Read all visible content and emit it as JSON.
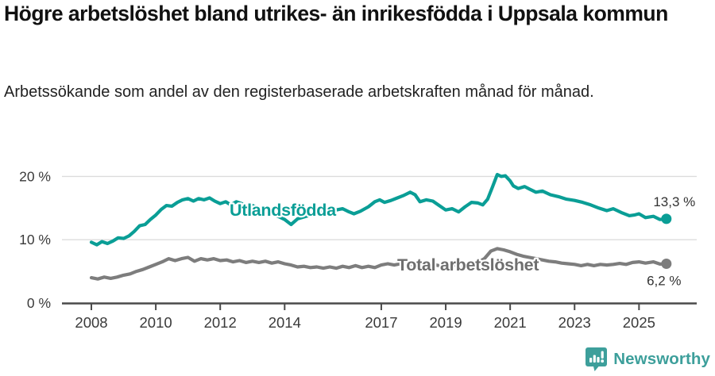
{
  "header": {
    "title": "Högre arbetslöshet bland utrikes- än inrikesfödda i Uppsala kommun",
    "subtitle": "Arbetssökande som andel av den registerbaserade arbetskraften månad för månad."
  },
  "chart_data": {
    "type": "line",
    "title": "Arbetssökande som andel av den registerbaserade arbetskraften månad för månad",
    "xlabel": "",
    "ylabel": "",
    "unit": "%",
    "grid": "horizontal",
    "legend_position": "inline-labels",
    "xlim": [
      2007.55,
      2026.35
    ],
    "ylim": [
      0,
      21.8
    ],
    "x_ticks": [
      {
        "value": 2008,
        "label": "2008"
      },
      {
        "value": 2010,
        "label": "2010"
      },
      {
        "value": 2012,
        "label": "2012"
      },
      {
        "value": 2014,
        "label": "2014"
      },
      {
        "value": 2017,
        "label": "2017"
      },
      {
        "value": 2019,
        "label": "2019"
      },
      {
        "value": 2021,
        "label": "2021"
      },
      {
        "value": 2023,
        "label": "2023"
      },
      {
        "value": 2025,
        "label": "2025"
      }
    ],
    "y_ticks": [
      {
        "value": 0,
        "label": "0 %"
      },
      {
        "value": 10,
        "label": "10 %"
      },
      {
        "value": 20,
        "label": "20 %"
      }
    ],
    "series": [
      {
        "name": "Total arbetslöshet",
        "color": "#7d7d7d",
        "label_color": "#6e6e6e",
        "end_label": "6,2 %",
        "end_value": 6.2,
        "points": [
          [
            2008.0,
            4.0
          ],
          [
            2008.2,
            3.8
          ],
          [
            2008.4,
            4.1
          ],
          [
            2008.6,
            3.9
          ],
          [
            2008.8,
            4.1
          ],
          [
            2009.0,
            4.4
          ],
          [
            2009.2,
            4.6
          ],
          [
            2009.4,
            5.0
          ],
          [
            2009.6,
            5.3
          ],
          [
            2009.8,
            5.7
          ],
          [
            2010.0,
            6.1
          ],
          [
            2010.2,
            6.5
          ],
          [
            2010.4,
            7.0
          ],
          [
            2010.6,
            6.7
          ],
          [
            2010.8,
            7.0
          ],
          [
            2011.0,
            7.2
          ],
          [
            2011.2,
            6.6
          ],
          [
            2011.4,
            7.0
          ],
          [
            2011.6,
            6.8
          ],
          [
            2011.8,
            7.0
          ],
          [
            2012.0,
            6.7
          ],
          [
            2012.2,
            6.8
          ],
          [
            2012.4,
            6.5
          ],
          [
            2012.6,
            6.7
          ],
          [
            2012.8,
            6.4
          ],
          [
            2013.0,
            6.6
          ],
          [
            2013.2,
            6.4
          ],
          [
            2013.4,
            6.6
          ],
          [
            2013.6,
            6.3
          ],
          [
            2013.8,
            6.5
          ],
          [
            2014.0,
            6.2
          ],
          [
            2014.2,
            6.0
          ],
          [
            2014.4,
            5.7
          ],
          [
            2014.6,
            5.8
          ],
          [
            2014.8,
            5.6
          ],
          [
            2015.0,
            5.7
          ],
          [
            2015.2,
            5.5
          ],
          [
            2015.4,
            5.7
          ],
          [
            2015.6,
            5.5
          ],
          [
            2015.8,
            5.8
          ],
          [
            2016.0,
            5.6
          ],
          [
            2016.2,
            5.9
          ],
          [
            2016.4,
            5.6
          ],
          [
            2016.6,
            5.8
          ],
          [
            2016.8,
            5.6
          ],
          [
            2017.0,
            6.0
          ],
          [
            2017.2,
            6.2
          ],
          [
            2017.4,
            6.0
          ],
          [
            2017.6,
            6.2
          ],
          [
            2017.8,
            6.0
          ],
          [
            2018.0,
            6.1
          ],
          [
            2018.2,
            6.3
          ],
          [
            2018.4,
            6.0
          ],
          [
            2018.6,
            6.1
          ],
          [
            2018.8,
            5.9
          ],
          [
            2019.0,
            5.9
          ],
          [
            2019.2,
            6.1
          ],
          [
            2019.4,
            5.9
          ],
          [
            2019.6,
            6.1
          ],
          [
            2019.8,
            6.2
          ],
          [
            2020.0,
            6.4
          ],
          [
            2020.2,
            7.0
          ],
          [
            2020.4,
            8.2
          ],
          [
            2020.6,
            8.6
          ],
          [
            2020.8,
            8.4
          ],
          [
            2021.0,
            8.1
          ],
          [
            2021.2,
            7.7
          ],
          [
            2021.4,
            7.4
          ],
          [
            2021.6,
            7.2
          ],
          [
            2021.8,
            7.0
          ],
          [
            2022.0,
            6.8
          ],
          [
            2022.2,
            6.6
          ],
          [
            2022.4,
            6.5
          ],
          [
            2022.6,
            6.3
          ],
          [
            2022.8,
            6.2
          ],
          [
            2023.0,
            6.1
          ],
          [
            2023.2,
            5.9
          ],
          [
            2023.4,
            6.1
          ],
          [
            2023.6,
            5.9
          ],
          [
            2023.8,
            6.1
          ],
          [
            2024.0,
            6.0
          ],
          [
            2024.2,
            6.1
          ],
          [
            2024.4,
            6.25
          ],
          [
            2024.6,
            6.1
          ],
          [
            2024.8,
            6.4
          ],
          [
            2025.0,
            6.5
          ],
          [
            2025.2,
            6.3
          ],
          [
            2025.45,
            6.5
          ],
          [
            2025.65,
            6.15
          ],
          [
            2025.85,
            6.2
          ]
        ]
      },
      {
        "name": "Utlandsfödda",
        "color": "#0a9e96",
        "label_color": "#0a9e96",
        "end_label": "13,3 %",
        "end_value": 13.3,
        "points": [
          [
            2008.0,
            9.6
          ],
          [
            2008.17,
            9.2
          ],
          [
            2008.33,
            9.7
          ],
          [
            2008.5,
            9.4
          ],
          [
            2008.67,
            9.8
          ],
          [
            2008.83,
            10.3
          ],
          [
            2009.0,
            10.2
          ],
          [
            2009.17,
            10.6
          ],
          [
            2009.33,
            11.3
          ],
          [
            2009.5,
            12.2
          ],
          [
            2009.67,
            12.4
          ],
          [
            2009.83,
            13.2
          ],
          [
            2010.0,
            13.9
          ],
          [
            2010.17,
            14.8
          ],
          [
            2010.33,
            15.4
          ],
          [
            2010.5,
            15.3
          ],
          [
            2010.67,
            15.9
          ],
          [
            2010.83,
            16.3
          ],
          [
            2011.0,
            16.5
          ],
          [
            2011.17,
            16.1
          ],
          [
            2011.33,
            16.5
          ],
          [
            2011.5,
            16.3
          ],
          [
            2011.67,
            16.6
          ],
          [
            2011.83,
            16.1
          ],
          [
            2012.0,
            15.7
          ],
          [
            2012.17,
            16.0
          ],
          [
            2012.33,
            15.5
          ],
          [
            2012.5,
            16.0
          ],
          [
            2012.67,
            15.7
          ],
          [
            2012.83,
            15.3
          ],
          [
            2013.0,
            15.4
          ],
          [
            2013.25,
            14.9
          ],
          [
            2013.5,
            14.4
          ],
          [
            2013.75,
            13.8
          ],
          [
            2014.0,
            13.2
          ],
          [
            2014.2,
            12.4
          ],
          [
            2014.4,
            13.3
          ],
          [
            2014.6,
            13.6
          ],
          [
            2014.8,
            13.9
          ],
          [
            2015.0,
            14.2
          ],
          [
            2015.2,
            14.6
          ],
          [
            2015.4,
            14.3
          ],
          [
            2015.6,
            14.7
          ],
          [
            2015.8,
            14.9
          ],
          [
            2016.0,
            14.4
          ],
          [
            2016.15,
            14.1
          ],
          [
            2016.35,
            14.5
          ],
          [
            2016.6,
            15.2
          ],
          [
            2016.8,
            16.0
          ],
          [
            2016.95,
            16.3
          ],
          [
            2017.1,
            15.9
          ],
          [
            2017.3,
            16.2
          ],
          [
            2017.5,
            16.6
          ],
          [
            2017.7,
            17.0
          ],
          [
            2017.9,
            17.5
          ],
          [
            2018.05,
            17.1
          ],
          [
            2018.2,
            16.0
          ],
          [
            2018.4,
            16.3
          ],
          [
            2018.6,
            16.1
          ],
          [
            2018.8,
            15.4
          ],
          [
            2019.0,
            14.7
          ],
          [
            2019.2,
            14.9
          ],
          [
            2019.4,
            14.4
          ],
          [
            2019.6,
            15.2
          ],
          [
            2019.8,
            15.9
          ],
          [
            2020.0,
            15.8
          ],
          [
            2020.15,
            15.5
          ],
          [
            2020.3,
            16.4
          ],
          [
            2020.45,
            18.3
          ],
          [
            2020.6,
            20.3
          ],
          [
            2020.72,
            20.0
          ],
          [
            2020.85,
            20.1
          ],
          [
            2021.0,
            19.3
          ],
          [
            2021.1,
            18.5
          ],
          [
            2021.25,
            18.1
          ],
          [
            2021.45,
            18.4
          ],
          [
            2021.6,
            18.0
          ],
          [
            2021.8,
            17.5
          ],
          [
            2022.0,
            17.7
          ],
          [
            2022.25,
            17.1
          ],
          [
            2022.5,
            16.8
          ],
          [
            2022.75,
            16.4
          ],
          [
            2023.0,
            16.2
          ],
          [
            2023.25,
            15.9
          ],
          [
            2023.5,
            15.5
          ],
          [
            2023.75,
            15.0
          ],
          [
            2024.0,
            14.6
          ],
          [
            2024.2,
            14.9
          ],
          [
            2024.45,
            14.3
          ],
          [
            2024.7,
            13.8
          ],
          [
            2024.85,
            13.9
          ],
          [
            2025.0,
            14.1
          ],
          [
            2025.2,
            13.5
          ],
          [
            2025.45,
            13.7
          ],
          [
            2025.65,
            13.2
          ],
          [
            2025.85,
            13.3
          ]
        ]
      }
    ]
  },
  "footer": {
    "brand": "Newsworthy",
    "brand_color": "#3d9f9b"
  },
  "icons": {
    "logo": "newsworthy-speech-bubble-chart-icon"
  }
}
